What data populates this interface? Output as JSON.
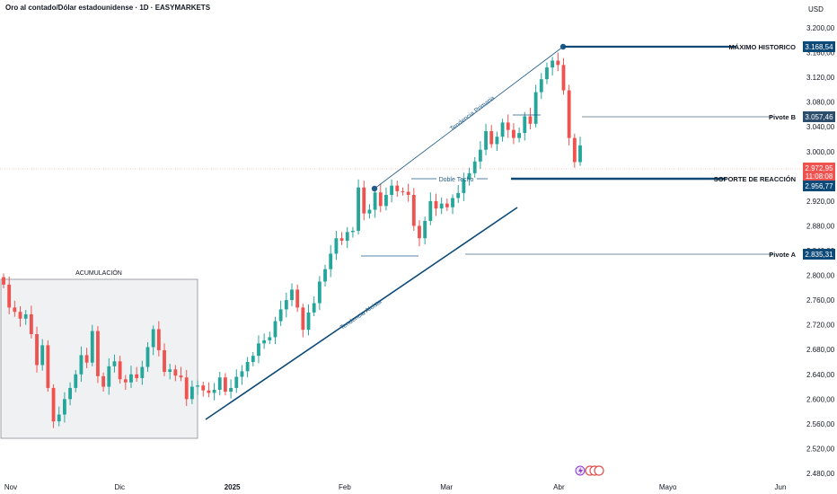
{
  "header": {
    "title": "Oro al contado/Dólar estadounidense · 1D · EASYMARKETS",
    "currency": "USD"
  },
  "colors": {
    "up": "#26a69a",
    "down": "#ef5350",
    "line_blue": "#1f5c8a",
    "dark_blue": "#0d4a78",
    "bg": "#ffffff"
  },
  "chart_data": {
    "type": "candlestick",
    "y_axis": {
      "ylim": [
        2470,
        3215
      ],
      "ticks": [
        2480,
        2520,
        2560,
        2600,
        2640,
        2680,
        2720,
        2760,
        2800,
        2840,
        2880,
        2920,
        2960,
        3000,
        3040,
        3080,
        3120,
        3160,
        3200
      ],
      "tick_labels": [
        "2.480,00",
        "2.520,00",
        "2.560,00",
        "2.600,00",
        "2.640,00",
        "2.680,00",
        "2.720,00",
        "2.760,00",
        "2.800,00",
        "2.840,00",
        "2.880,00",
        "2.920,00",
        "2.960,00",
        "3.000,00",
        "3.040,00",
        "3.080,00",
        "3.120,00",
        "3.160,00",
        "3.200,00"
      ]
    },
    "x_axis": {
      "labels": [
        {
          "text": "Nov",
          "date": "2024-11-01"
        },
        {
          "text": "Dic",
          "date": "2024-12-01"
        },
        {
          "text": "2025",
          "date": "2025-01-01",
          "bold": true
        },
        {
          "text": "Feb",
          "date": "2025-02-01"
        },
        {
          "text": "Mar",
          "date": "2025-03-01"
        },
        {
          "text": "Abr",
          "date": "2025-04-01"
        },
        {
          "text": "Mayo",
          "date": "2025-05-01"
        },
        {
          "text": "Jun",
          "date": "2025-06-01"
        }
      ],
      "range": [
        "2024-11-01",
        "2025-06-01"
      ]
    },
    "closes": [
      2785,
      2748,
      2741,
      2730,
      2737,
      2705,
      2655,
      2687,
      2618,
      2564,
      2575,
      2600,
      2618,
      2640,
      2671,
      2659,
      2710,
      2637,
      2620,
      2653,
      2661,
      2632,
      2627,
      2640,
      2634,
      2652,
      2684,
      2713,
      2679,
      2644,
      2648,
      2638,
      2635,
      2600,
      2620,
      2622,
      2614,
      2610,
      2615,
      2635,
      2612,
      2618,
      2636,
      2645,
      2660,
      2670,
      2690,
      2695,
      2700,
      2726,
      2745,
      2760,
      2777,
      2748,
      2712,
      2740,
      2755,
      2790,
      2810,
      2835,
      2860,
      2856,
      2870,
      2872,
      2942,
      2900,
      2906,
      2934,
      2912,
      2930,
      2945,
      2936,
      2935,
      2930,
      2880,
      2860,
      2888,
      2920,
      2908,
      2916,
      2910,
      2925,
      2933,
      2955,
      2965,
      2984,
      3003,
      3033,
      3012,
      3024,
      3047,
      3035,
      3022,
      3030,
      3057,
      3045,
      3096,
      3117,
      3136,
      3147,
      3140,
      3099,
      3022,
      2983,
      3010
    ],
    "annotations": {
      "maximo_historico": {
        "label": "MÁXIMO HISTORICO",
        "value": 3168.54,
        "value_label": "3.168,54"
      },
      "pivote_b": {
        "label": "Pivote B",
        "value": 3057.46,
        "value_label": "3.057,46"
      },
      "current_price": {
        "value": 2972.95,
        "value_label": "2.972,95",
        "countdown": "11:08:08"
      },
      "soporte": {
        "label": "SOPORTE DE REACCIÓN",
        "value": 2956.77,
        "value_label": "2.956,77"
      },
      "pivote_a": {
        "label": "Pivote A",
        "value": 2835.31,
        "value_label": "2.835,31"
      },
      "acumulacion": "ACUMULACIÓN",
      "doble_techo": "Doble Techo",
      "tendencia_primaria": "Tendencia Primaria",
      "tendencia_alcista": "Tendencia Alcista"
    }
  }
}
